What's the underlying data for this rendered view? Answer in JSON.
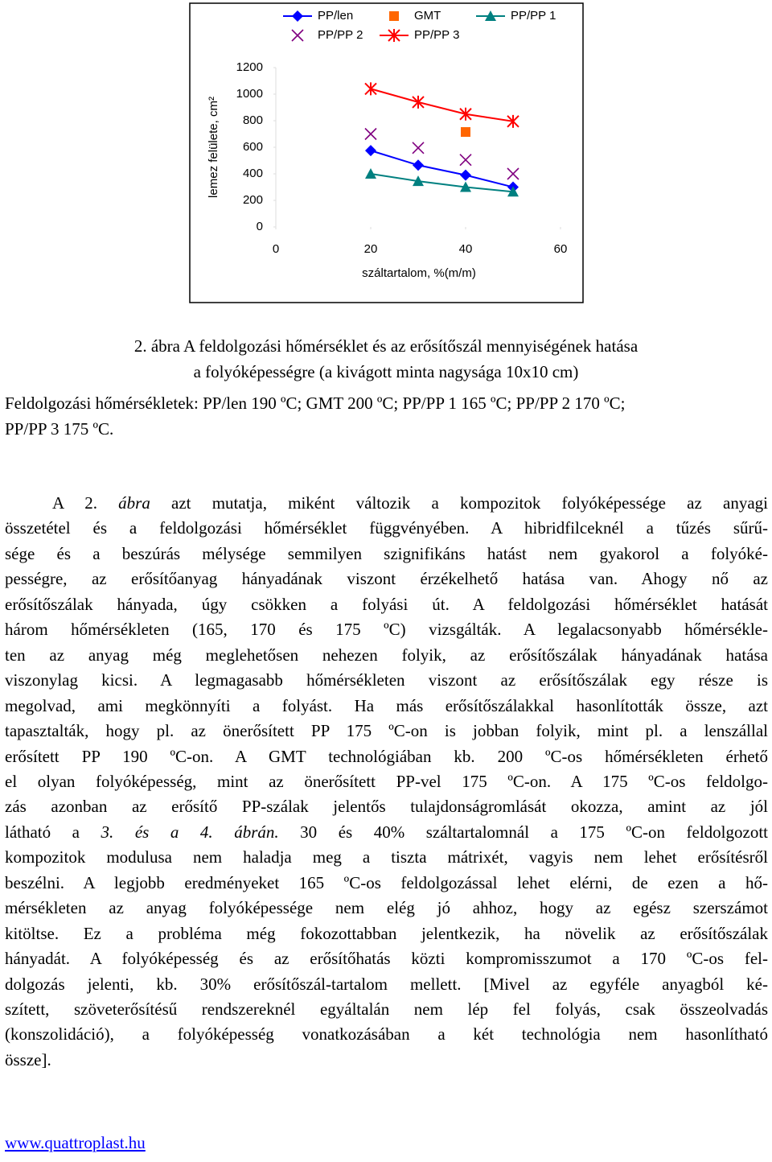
{
  "chart_data": {
    "type": "line",
    "x_label": "száltartalom, %(m/m)",
    "y_label": "lemez felülete, cm²",
    "x": [
      20,
      30,
      40,
      50
    ],
    "xlim": [
      0,
      60
    ],
    "xticks": [
      0,
      20,
      40,
      60
    ],
    "ylim": [
      0,
      1200
    ],
    "yticks": [
      0,
      200,
      400,
      600,
      800,
      1000,
      1200
    ],
    "grid": false,
    "legend": "top",
    "series": [
      {
        "name": "PP/len",
        "color": "#0000ff",
        "marker": "diamond",
        "line": true,
        "values": [
          575,
          465,
          390,
          300
        ]
      },
      {
        "name": "GMT",
        "color": "#ff6600",
        "marker": "square",
        "line": false,
        "values": [
          null,
          null,
          715,
          null
        ]
      },
      {
        "name": "PP/PP 1",
        "color": "#008080",
        "marker": "triangle",
        "line": true,
        "values": [
          400,
          345,
          300,
          265
        ]
      },
      {
        "name": "PP/PP 2",
        "color": "#800080",
        "marker": "x",
        "line": false,
        "values": [
          700,
          595,
          505,
          400
        ]
      },
      {
        "name": "PP/PP 3",
        "color": "#ff0000",
        "marker": "star",
        "line": true,
        "values": [
          1040,
          940,
          850,
          795
        ]
      }
    ]
  },
  "caption": {
    "lines": [
      "2. ábra A feldolgozási hőmérséklet és az erősítőszál mennyiségének hatása",
      "a folyóképességre (a kivágott minta nagysága 10x10 cm)"
    ]
  },
  "note": {
    "lines": [
      "Feldolgozási hőmérsékletek: PP/len 190 ºC; GMT 200 ºC; PP/PP 1 165 ºC; PP/PP 2 170 ºC;",
      "PP/PP 3 175 ºC."
    ]
  },
  "body": {
    "lines": [
      [
        "A 2. ",
        {
          "text": "ábra",
          "italic": true
        },
        " azt mutatja, miként változik a kompozitok folyóképessége az anyagi"
      ],
      [
        "összetétel és a feldolgozási hőmérséklet függvényében. A hibridfilceknél a tűzés sűrű-"
      ],
      [
        "sége és a beszúrás mélysége semmilyen szignifikáns hatást nem gyakorol a folyóké-"
      ],
      [
        "pességre, az erősítőanyag hányadának viszont érzékelhető hatása van. Ahogy nő az"
      ],
      [
        "erősítőszálak hányada, úgy csökken a folyási út. A feldolgozási hőmérséklet hatását"
      ],
      [
        "három hőmérsékleten (165, 170 és 175 ºC) vizsgálták. A legalacsonyabb hőmérsékle-"
      ],
      [
        "ten az anyag még meglehetősen nehezen folyik, az erősítőszálak hányadának hatása"
      ],
      [
        "viszonylag kicsi. A legmagasabb hőmérsékleten viszont az erősítőszálak egy része is"
      ],
      [
        "megolvad, ami megkönnyíti a folyást. Ha más erősítőszálakkal hasonlították össze, azt"
      ],
      [
        "tapasztalták, hogy pl. az önerősített PP 175 ºC-on is jobban folyik, mint pl. a lenszállal"
      ],
      [
        "erősített PP 190 ºC-on. A GMT technológiában kb. 200 ºC-os hőmérsékleten érhető"
      ],
      [
        "el olyan folyóképesség, mint az önerősített PP-vel 175 ºC-on. A 175 ºC-os feldolgo-"
      ],
      [
        "zás azonban az erősítő PP-szálak jelentős tulajdonságromlását okozza, amint az jól"
      ],
      [
        "látható a ",
        {
          "text": "3. és a 4. ábrán.",
          "italic": true
        },
        " 30 és 40% száltartalomnál a 175 ºC-on feldolgozott"
      ],
      [
        "kompozitok modulusa nem haladja meg a tiszta mátrixét, vagyis nem lehet erősítésről"
      ],
      [
        "beszélni. A legjobb eredményeket 165 ºC-os feldolgozással lehet elérni, de ezen a hő-"
      ],
      [
        "mérsékleten az anyag folyóképessége nem elég jó ahhoz, hogy az egész szerszámot"
      ],
      [
        "kitöltse. Ez a probléma még fokozottabban jelentkezik, ha növelik az erősítőszálak"
      ],
      [
        "hányadát. A folyóképesség és az erősítőhatás közti kompromisszumot a 170 ºC-os fel-"
      ],
      [
        "dolgozás jelenti, kb. 30% erősítőszál-tartalom mellett. [Mivel az egyféle anyagból ké-"
      ],
      [
        "szített, szöveterősítésű rendszereknél egyáltalán nem lép fel folyás, csak összeolvadás"
      ],
      [
        "(konszolidáció), a folyóképesség vonatkozásában a két technológia nem hasonlítható"
      ],
      [
        "össze]."
      ]
    ]
  },
  "footer": {
    "link": "www.quattroplast.hu"
  }
}
